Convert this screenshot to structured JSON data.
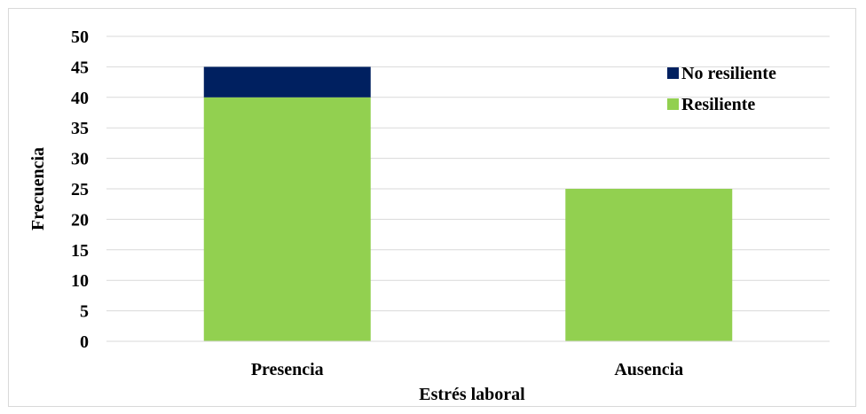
{
  "chart_data": {
    "type": "bar",
    "stacked": true,
    "categories": [
      "Presencia",
      "Ausencia"
    ],
    "series": [
      {
        "name": "Resiliente",
        "values": [
          40,
          25
        ],
        "color": "#92d050"
      },
      {
        "name": "No resiliente",
        "values": [
          5,
          0
        ],
        "color": "#002060"
      }
    ],
    "xlabel": "Estrés laboral",
    "ylabel": "Frecuencia",
    "ylim": [
      0,
      50
    ],
    "yticks": [
      0,
      5,
      10,
      15,
      20,
      25,
      30,
      35,
      40,
      45,
      50
    ],
    "grid": true,
    "legend_position": "top-right",
    "legend_order": [
      "No resiliente",
      "Resiliente"
    ]
  }
}
